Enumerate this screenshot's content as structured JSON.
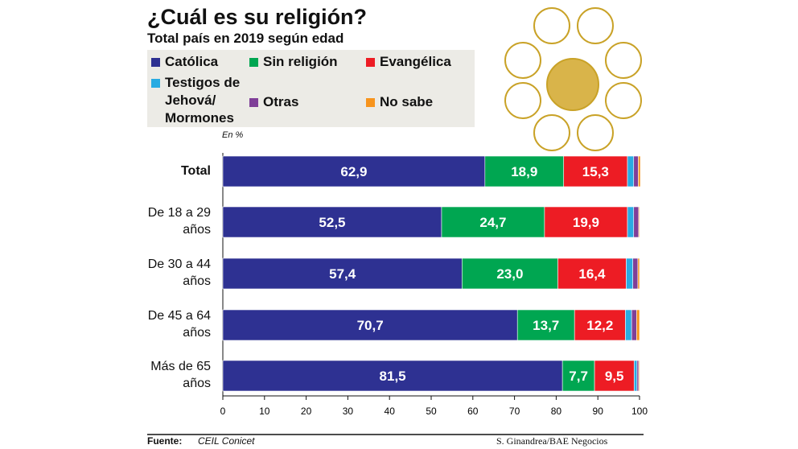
{
  "chart_data": {
    "type": "stacked-barh",
    "title": "¿Cuál es su religión?",
    "subtitle": "Total país en 2019 según edad",
    "x_label": "En %",
    "source_label": "Fuente:",
    "source": "CEIL Conicet",
    "credit": "S. Ginandrea/BAE Negocios",
    "categories": [
      "Total",
      "De 18 a 29 años",
      "De 30 a 44 años",
      "De 45 a 64 años",
      "Más de 65 años"
    ],
    "series": [
      {
        "name": "Católica",
        "color": "#2e3192",
        "values": [
          62.9,
          52.5,
          57.4,
          70.7,
          81.5
        ],
        "value_labels": [
          "62,9",
          "52,5",
          "57,4",
          "70,7",
          "81,5"
        ]
      },
      {
        "name": "Sin religión",
        "color": "#00a651",
        "values": [
          18.9,
          24.7,
          23.0,
          13.7,
          7.7
        ],
        "value_labels": [
          "18,9",
          "24,7",
          "23,0",
          "13,7",
          "7,7"
        ]
      },
      {
        "name": "Evangélica",
        "color": "#ed1c24",
        "values": [
          15.3,
          19.9,
          16.4,
          12.2,
          9.5
        ],
        "value_labels": [
          "15,3",
          "19,9",
          "16,4",
          "12,2",
          "9,5"
        ]
      },
      {
        "name": "Testigos de Jehová/ Mormones",
        "color": "#29abe2",
        "values": [
          1.5,
          1.5,
          1.6,
          1.5,
          0.7
        ]
      },
      {
        "name": "Otras",
        "color": "#7f3f98",
        "values": [
          1.1,
          1.2,
          1.2,
          1.2,
          0.4
        ]
      },
      {
        "name": "No sabe",
        "color": "#f7941d",
        "values": [
          0.5,
          0.2,
          0.4,
          0.7,
          0.2
        ]
      }
    ],
    "xlim": [
      0,
      100
    ],
    "xticks": [
      0,
      10,
      20,
      30,
      40,
      50,
      60,
      70,
      80,
      90,
      100
    ]
  }
}
